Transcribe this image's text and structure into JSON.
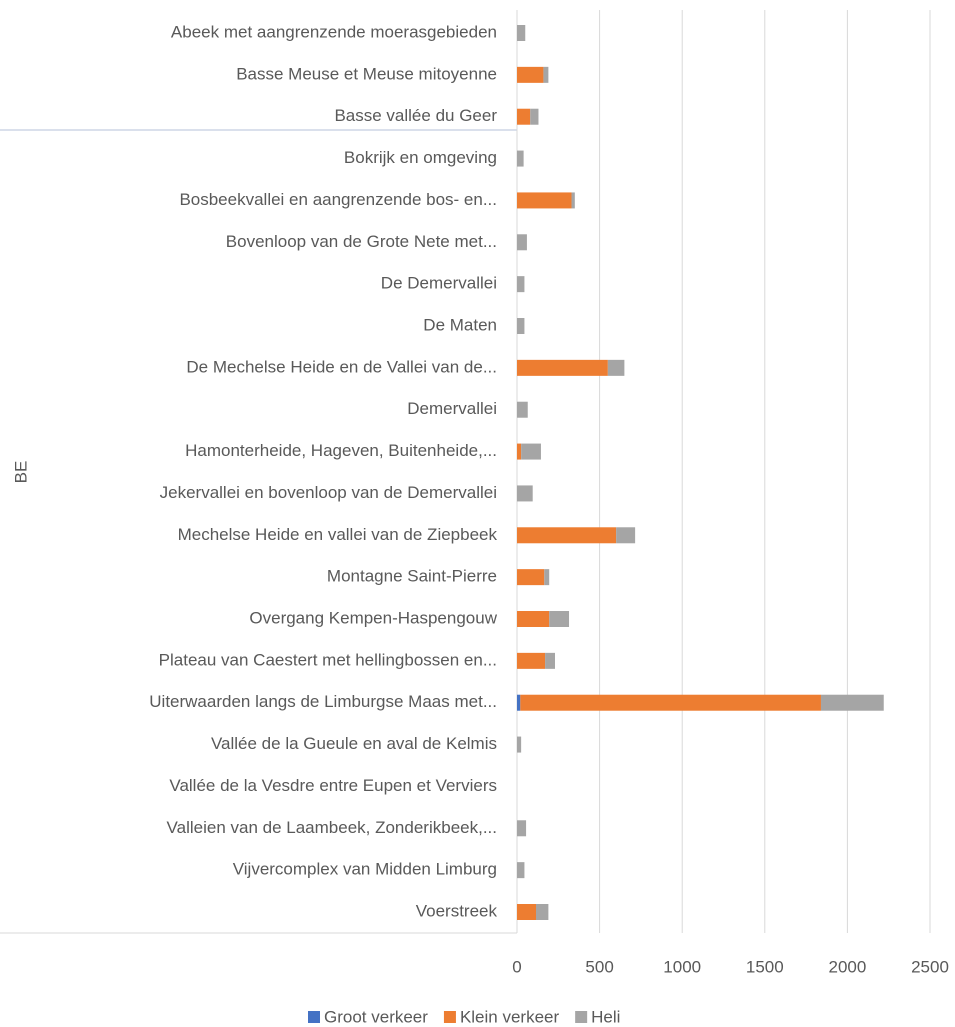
{
  "chart_data": {
    "type": "bar",
    "orientation": "horizontal",
    "stacked": true,
    "y_label": "BE",
    "categories": [
      "Abeek met aangrenzende moerasgebieden",
      "Basse Meuse et Meuse mitoyenne",
      "Basse vallée du Geer",
      "Bokrijk en omgeving",
      "Bosbeekvallei en aangrenzende bos- en...",
      "Bovenloop van de Grote Nete met...",
      "De Demervallei",
      "De Maten",
      "De Mechelse Heide en de Vallei van de...",
      "Demervallei",
      "Hamonterheide, Hageven, Buitenheide,...",
      "Jekervallei en bovenloop van de Demervallei",
      "Mechelse Heide en vallei van de Ziepbeek",
      "Montagne Saint-Pierre",
      "Overgang Kempen-Haspengouw",
      "Plateau van Caestert met hellingbossen en...",
      "Uiterwaarden langs de Limburgse Maas met...",
      "Vallée de la Gueule en aval de Kelmis",
      "Vallée de la Vesdre entre Eupen et Verviers",
      "Valleien van de Laambeek, Zonderikbeek,...",
      "Vijvercomplex van Midden Limburg",
      "Voerstreek"
    ],
    "series": [
      {
        "name": "Groot verkeer",
        "color": "#4472c4",
        "values": [
          0,
          0,
          0,
          0,
          0,
          0,
          0,
          0,
          0,
          0,
          0,
          0,
          0,
          0,
          0,
          0,
          20,
          0,
          0,
          0,
          0,
          0
        ]
      },
      {
        "name": "Klein verkeer",
        "color": "#ed7d31",
        "values": [
          0,
          160,
          80,
          0,
          330,
          0,
          0,
          0,
          550,
          0,
          25,
          0,
          600,
          165,
          195,
          170,
          1820,
          0,
          0,
          0,
          0,
          115
        ]
      },
      {
        "name": "Heli",
        "color": "#a5a5a5",
        "values": [
          50,
          30,
          50,
          40,
          20,
          60,
          45,
          45,
          100,
          65,
          120,
          95,
          115,
          30,
          120,
          60,
          380,
          25,
          0,
          55,
          45,
          75
        ]
      }
    ],
    "xlim": [
      0,
      2500
    ],
    "xticks": [
      0,
      500,
      1000,
      1500,
      2000,
      2500
    ],
    "grid": true,
    "legend": "bottom"
  }
}
